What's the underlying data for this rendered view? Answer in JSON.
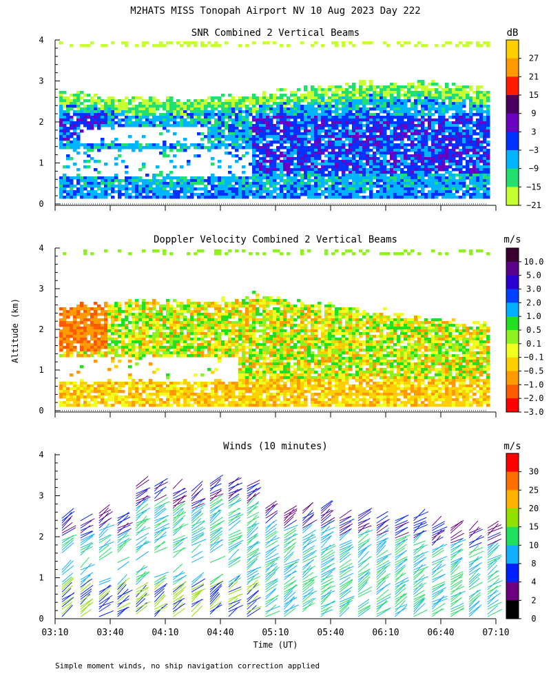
{
  "figure": {
    "title": "M2HATS MISS Tonopah Airport NV  10 Aug 2023 Day 222",
    "ylabel": "Altitude (km)",
    "xlabel": "Time (UT)",
    "footnote": "Simple moment winds, no ship navigation correction applied"
  },
  "chart_data": [
    {
      "type": "heatmap",
      "title": "SNR Combined 2 Vertical Beams",
      "units": "dB",
      "ylim": [
        0,
        4
      ],
      "y_ticks": [
        "0",
        "1",
        "2",
        "3",
        "4"
      ],
      "xlim": [
        "03:10",
        "07:10"
      ],
      "colorbar": {
        "labels": [
          "27",
          "21",
          "15",
          "9",
          "3",
          "−3",
          "−9",
          "−15",
          "−21"
        ],
        "colors": [
          "#ffd000",
          "#ff9a00",
          "#ff1a00",
          "#4a0060",
          "#6a00c0",
          "#0033ff",
          "#00b4ff",
          "#22e070",
          "#c8ff30"
        ]
      }
    },
    {
      "type": "heatmap",
      "title": "Doppler Velocity Combined 2 Vertical Beams",
      "units": "m/s",
      "ylim": [
        0,
        4
      ],
      "y_ticks": [
        "0",
        "1",
        "2",
        "3",
        "4"
      ],
      "xlim": [
        "03:10",
        "07:10"
      ],
      "colorbar": {
        "labels": [
          "10.0",
          "5.0",
          "3.0",
          "2.0",
          "1.0",
          "0.5",
          "0.1",
          "−0.1",
          "−0.5",
          "−1.0",
          "−2.0",
          "−3.0"
        ],
        "colors": [
          "#3a0030",
          "#5a008a",
          "#2a00d0",
          "#0040ff",
          "#00b0ff",
          "#20e020",
          "#90f020",
          "#f0ff20",
          "#ffd000",
          "#ff9a00",
          "#ff5a00",
          "#ff0000"
        ]
      }
    },
    {
      "type": "scatter",
      "title": "Winds (10 minutes)",
      "units": "m/s",
      "ylim": [
        0,
        4
      ],
      "y_ticks": [
        "0",
        "1",
        "2",
        "3",
        "4"
      ],
      "x_ticks": [
        "03:10",
        "03:40",
        "04:10",
        "04:40",
        "05:10",
        "05:40",
        "06:10",
        "06:40",
        "07:10"
      ],
      "colorbar": {
        "labels": [
          "30",
          "25",
          "20",
          "15",
          "10",
          "8",
          "4",
          "2",
          "0"
        ],
        "colors": [
          "#ff0000",
          "#ff7000",
          "#ffb000",
          "#90e000",
          "#20e060",
          "#10b0ff",
          "#0020ff",
          "#6a0080",
          "#000000"
        ]
      }
    }
  ]
}
